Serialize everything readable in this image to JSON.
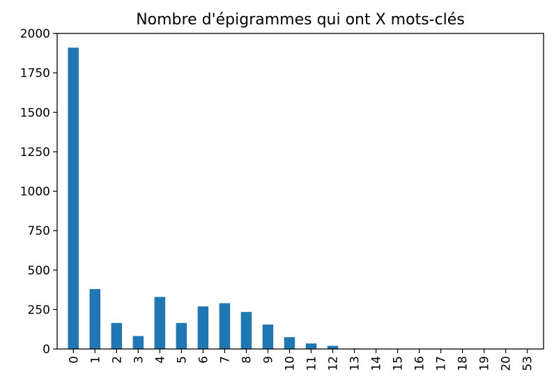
{
  "chart_data": {
    "type": "bar",
    "title": "Nombre d'épigrammes qui ont X mots-clés",
    "xlabel": "",
    "ylabel": "",
    "categories": [
      "0",
      "1",
      "2",
      "3",
      "4",
      "5",
      "6",
      "7",
      "8",
      "9",
      "10",
      "11",
      "12",
      "13",
      "14",
      "15",
      "16",
      "17",
      "18",
      "19",
      "20",
      "53"
    ],
    "values": [
      1910,
      380,
      165,
      82,
      330,
      165,
      270,
      290,
      235,
      155,
      75,
      35,
      20,
      3,
      2,
      1,
      1,
      1,
      1,
      1,
      1,
      1
    ],
    "ylim": [
      0,
      2000
    ],
    "yticks": [
      "0",
      "250",
      "500",
      "750",
      "1000",
      "1250",
      "1500",
      "1750",
      "2000"
    ],
    "bar_color": "#1f77b4",
    "grid": false,
    "legend": false
  }
}
